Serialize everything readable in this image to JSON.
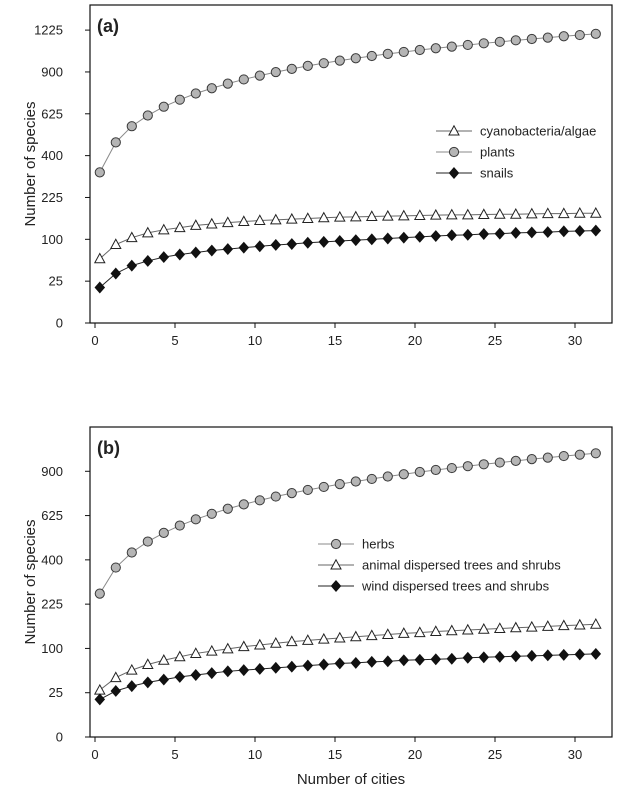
{
  "chart_data": [
    {
      "type": "line",
      "panel_label": "(a)",
      "xlabel": "",
      "ylabel": "Number of species",
      "y_scale": "sqrt",
      "xlim": [
        0,
        32
      ],
      "ylim": [
        0,
        1444
      ],
      "x_ticks": [
        0,
        5,
        10,
        15,
        20,
        25,
        30
      ],
      "y_ticks": [
        0,
        25,
        100,
        225,
        400,
        625,
        900,
        1225
      ],
      "legend_position": "right",
      "x": [
        0.3,
        1.3,
        2.3,
        3.3,
        4.3,
        5.3,
        6.3,
        7.3,
        8.3,
        9.3,
        10.3,
        11.3,
        12.3,
        13.3,
        14.3,
        15.3,
        16.3,
        17.3,
        18.3,
        19.3,
        20.3,
        21.3,
        22.3,
        23.3,
        24.3,
        25.3,
        26.3,
        27.3,
        28.3,
        29.3,
        30.3,
        31.3
      ],
      "series": [
        {
          "name": "cyanobacteria/algae",
          "marker": "triangle",
          "values": [
            59,
            88,
            104,
            116,
            124,
            130,
            136,
            140,
            144,
            147,
            150,
            152,
            154,
            156,
            158,
            160,
            161,
            162,
            163,
            164,
            165,
            166,
            167,
            167,
            168,
            169,
            169,
            170,
            171,
            171,
            172,
            172
          ]
        },
        {
          "name": "plants",
          "marker": "circle",
          "values": [
            324,
            466,
            553,
            615,
            668,
            712,
            752,
            787,
            818,
            847,
            874,
            899,
            922,
            944,
            964,
            983,
            1001,
            1018,
            1034,
            1049,
            1064,
            1078,
            1091,
            1104,
            1117,
            1129,
            1141,
            1152,
            1163,
            1174,
            1184,
            1194
          ]
        },
        {
          "name": "snails",
          "marker": "diamond",
          "values": [
            18,
            35,
            47,
            55,
            62,
            67,
            71,
            75,
            78,
            81,
            84,
            87,
            89,
            92,
            94,
            96,
            98,
            100,
            102,
            104,
            106,
            108,
            110,
            111,
            113,
            114,
            116,
            117,
            118,
            120,
            121,
            122
          ]
        }
      ]
    },
    {
      "type": "line",
      "panel_label": "(b)",
      "xlabel": "Number of cities",
      "ylabel": "Number of species",
      "y_scale": "sqrt",
      "xlim": [
        0,
        32
      ],
      "ylim": [
        0,
        1225
      ],
      "x_ticks": [
        0,
        5,
        10,
        15,
        20,
        25,
        30
      ],
      "y_ticks": [
        0,
        25,
        100,
        225,
        400,
        625,
        900
      ],
      "legend_position": "right",
      "x": [
        0.3,
        1.3,
        2.3,
        3.3,
        4.3,
        5.3,
        6.3,
        7.3,
        8.3,
        9.3,
        10.3,
        11.3,
        12.3,
        13.3,
        14.3,
        15.3,
        16.3,
        17.3,
        18.3,
        19.3,
        20.3,
        21.3,
        22.3,
        23.3,
        24.3,
        25.3,
        26.3,
        27.3,
        28.3,
        29.3,
        30.3,
        31.3
      ],
      "series": [
        {
          "name": "herbs",
          "marker": "circle",
          "values": [
            262,
            366,
            434,
            487,
            531,
            570,
            604,
            635,
            664,
            690,
            714,
            737,
            758,
            778,
            797,
            815,
            832,
            849,
            865,
            880,
            895,
            909,
            922,
            935,
            948,
            960,
            972,
            984,
            995,
            1006,
            1016,
            1026
          ]
        },
        {
          "name": "animal dispersed trees and shrubs",
          "marker": "triangle",
          "values": [
            28,
            45,
            57,
            67,
            75,
            82,
            89,
            94,
            99,
            104,
            108,
            112,
            116,
            119,
            122,
            125,
            128,
            131,
            134,
            137,
            139,
            142,
            144,
            146,
            148,
            150,
            152,
            154,
            156,
            158,
            160,
            162
          ]
        },
        {
          "name": "wind dispersed trees and shrubs",
          "marker": "diamond",
          "values": [
            18,
            27,
            33,
            38,
            42,
            46,
            49,
            52,
            55,
            57,
            59,
            61,
            63,
            65,
            67,
            69,
            70,
            72,
            73,
            75,
            76,
            77,
            78,
            80,
            81,
            82,
            83,
            84,
            85,
            86,
            87,
            88
          ]
        }
      ]
    }
  ]
}
